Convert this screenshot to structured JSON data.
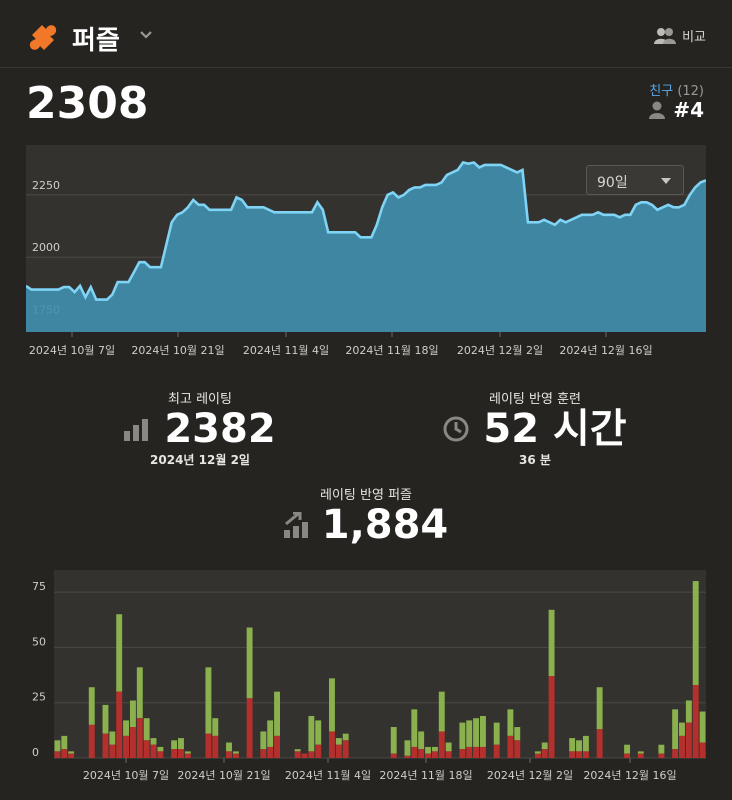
{
  "header": {
    "title": "퍼즐",
    "compare_label": "비교"
  },
  "rating": {
    "current": "2308"
  },
  "friends": {
    "label": "친구",
    "count": "(12)",
    "rank": "#4"
  },
  "range_select": {
    "value": "90일"
  },
  "stats": {
    "best": {
      "label": "최고 레이팅",
      "value": "2382",
      "sub": "2024년 12월 2일"
    },
    "training": {
      "label": "레이팅 반영 훈련",
      "value": "52 시간",
      "sub": "36 분"
    },
    "puzzles": {
      "label": "레이팅 반영 퍼즐",
      "value": "1,884"
    }
  },
  "colors": {
    "line": "#7fd3f5",
    "area": "#3f8fae",
    "won": "#8ab14e",
    "lost": "#b5302c"
  },
  "chart_data": [
    {
      "type": "area",
      "ylim": [
        1700,
        2450
      ],
      "yticks": [
        1750,
        2000,
        2250
      ],
      "x_tick_labels": [
        "2024년 10월 7일",
        "2024년 10월 21일",
        "2024년 11월 4일",
        "2024년 11월 18일",
        "2024년 12월 2일",
        "2024년 12월 16일"
      ],
      "values": [
        1885,
        1870,
        1870,
        1870,
        1870,
        1870,
        1870,
        1880,
        1880,
        1860,
        1885,
        1840,
        1880,
        1830,
        1830,
        1830,
        1850,
        1900,
        1900,
        1900,
        1940,
        1980,
        1980,
        1960,
        1960,
        1960,
        2050,
        2140,
        2170,
        2180,
        2200,
        2230,
        2210,
        2210,
        2190,
        2190,
        2190,
        2190,
        2190,
        2240,
        2230,
        2200,
        2200,
        2200,
        2200,
        2190,
        2180,
        2180,
        2180,
        2180,
        2180,
        2180,
        2180,
        2180,
        2220,
        2190,
        2100,
        2100,
        2100,
        2100,
        2100,
        2100,
        2080,
        2080,
        2080,
        2130,
        2200,
        2250,
        2260,
        2240,
        2250,
        2270,
        2280,
        2280,
        2290,
        2290,
        2290,
        2300,
        2330,
        2340,
        2350,
        2380,
        2375,
        2380,
        2360,
        2370,
        2370,
        2370,
        2370,
        2360,
        2350,
        2340,
        2350,
        2140,
        2140,
        2140,
        2150,
        2140,
        2130,
        2150,
        2140,
        2150,
        2160,
        2170,
        2170,
        2170,
        2180,
        2170,
        2170,
        2170,
        2160,
        2170,
        2170,
        2210,
        2220,
        2220,
        2210,
        2190,
        2200,
        2210,
        2200,
        2200,
        2210,
        2250,
        2280,
        2300,
        2308
      ]
    },
    {
      "type": "bar",
      "ylim": [
        0,
        85
      ],
      "yticks": [
        0,
        25,
        50,
        75
      ],
      "x_tick_labels": [
        "2024년 10월 7일",
        "2024년 10월 21일",
        "2024년 11월 4일",
        "2024년 11월 18일",
        "2024년 12월 2일",
        "2024년 12월 16일"
      ],
      "series": [
        {
          "name": "",
          "values": [
            3,
            4,
            2,
            0,
            0,
            15,
            0,
            11,
            6,
            30,
            10,
            14,
            18,
            8,
            6,
            3,
            0,
            4,
            4,
            2,
            0,
            0,
            11,
            10,
            0,
            3,
            2,
            0,
            27,
            0,
            4,
            5,
            10,
            0,
            0,
            3,
            2,
            3,
            6,
            0,
            12,
            6,
            8,
            0,
            0,
            0,
            0,
            0,
            0,
            2,
            0,
            1,
            5,
            4,
            2,
            3,
            12,
            3,
            0,
            4,
            5,
            5,
            5,
            0,
            6,
            0,
            10,
            8,
            0,
            0,
            2,
            4,
            37,
            0,
            0,
            3,
            3,
            3,
            0,
            13,
            0,
            0,
            0,
            2,
            0,
            2,
            0,
            0,
            2,
            0,
            4,
            10,
            16,
            33,
            7
          ]
        },
        {
          "name": "",
          "values": [
            5,
            6,
            1,
            0,
            0,
            17,
            0,
            13,
            6,
            35,
            7,
            12,
            23,
            10,
            3,
            2,
            0,
            4,
            5,
            1,
            0,
            0,
            30,
            8,
            0,
            4,
            1,
            0,
            32,
            0,
            8,
            12,
            20,
            0,
            0,
            1,
            0,
            16,
            11,
            0,
            24,
            3,
            3,
            0,
            0,
            0,
            0,
            0,
            0,
            12,
            0,
            7,
            17,
            8,
            3,
            2,
            18,
            4,
            0,
            12,
            12,
            13,
            14,
            0,
            10,
            0,
            12,
            6,
            0,
            0,
            1,
            3,
            30,
            0,
            0,
            6,
            5,
            7,
            0,
            19,
            0,
            0,
            0,
            4,
            0,
            1,
            0,
            0,
            4,
            0,
            18,
            6,
            10,
            47,
            14
          ]
        }
      ]
    }
  ]
}
